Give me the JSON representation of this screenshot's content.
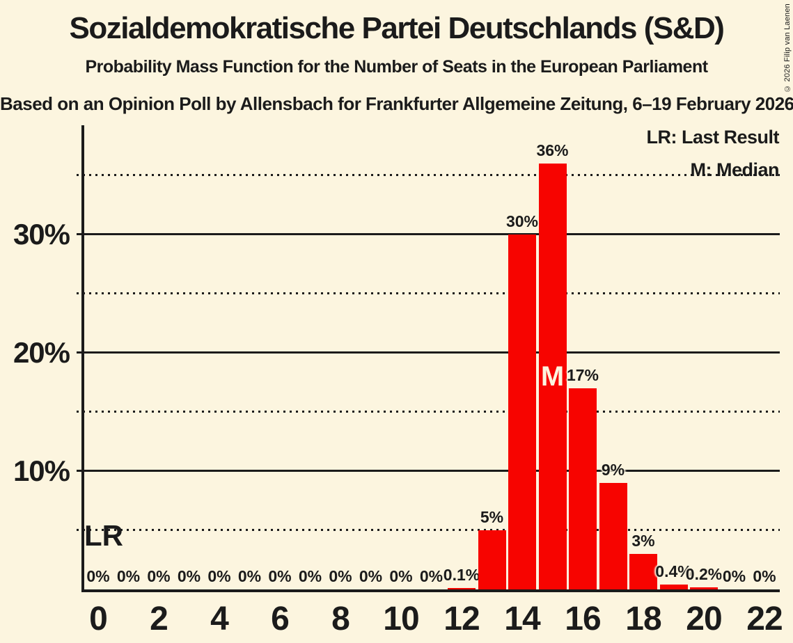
{
  "header": {
    "title": "Sozialdemokratische Partei Deutschlands (S&D)",
    "subtitle": "Probability Mass Function for the Number of Seats in the European Parliament",
    "source_line": "Based on an Opinion Poll by Allensbach for Frankfurter Allgemeine Zeitung, 6–19 February 2026",
    "copyright": "© 2026 Filip van Laenen"
  },
  "legend": {
    "lr": "LR: Last Result",
    "m": "M: Median"
  },
  "annotations": {
    "lr_label": "LR",
    "median_label": "M"
  },
  "colors": {
    "background": "#FCF5DF",
    "bar": "#F70400",
    "text": "#1B1B1B"
  },
  "chart_data": {
    "type": "bar",
    "title": "Sozialdemokratische Partei Deutschlands (S&D)",
    "x": [
      0,
      1,
      2,
      3,
      4,
      5,
      6,
      7,
      8,
      9,
      10,
      11,
      12,
      13,
      14,
      15,
      16,
      17,
      18,
      19,
      20,
      21,
      22
    ],
    "values": [
      0,
      0,
      0,
      0,
      0,
      0,
      0,
      0,
      0,
      0,
      0,
      0,
      0.1,
      5,
      30,
      36,
      17,
      9,
      3,
      0.4,
      0.2,
      0,
      0
    ],
    "bar_labels": [
      "0%",
      "0%",
      "0%",
      "0%",
      "0%",
      "0%",
      "0%",
      "0%",
      "0%",
      "0%",
      "0%",
      "0%",
      "0.1%",
      "5%",
      "30%",
      "36%",
      "17%",
      "9%",
      "3%",
      "0.4%",
      "0.2%",
      "0%",
      "0%"
    ],
    "median_seat": 15,
    "ylim": [
      0,
      39
    ],
    "grid": "on",
    "legend_position": "top-right",
    "y_axis_ticks": [
      {
        "pct": 10,
        "label": "10%"
      },
      {
        "pct": 20,
        "label": "20%"
      },
      {
        "pct": 30,
        "label": "30%"
      }
    ],
    "x_axis_tick_seats": [
      0,
      2,
      4,
      6,
      8,
      10,
      12,
      14,
      16,
      18,
      20,
      22
    ],
    "gridlines": [
      {
        "pct": 5,
        "style": "dotted"
      },
      {
        "pct": 10,
        "style": "solid"
      },
      {
        "pct": 15,
        "style": "dotted"
      },
      {
        "pct": 20,
        "style": "solid"
      },
      {
        "pct": 25,
        "style": "dotted"
      },
      {
        "pct": 30,
        "style": "solid"
      },
      {
        "pct": 35,
        "style": "dotted"
      }
    ]
  }
}
